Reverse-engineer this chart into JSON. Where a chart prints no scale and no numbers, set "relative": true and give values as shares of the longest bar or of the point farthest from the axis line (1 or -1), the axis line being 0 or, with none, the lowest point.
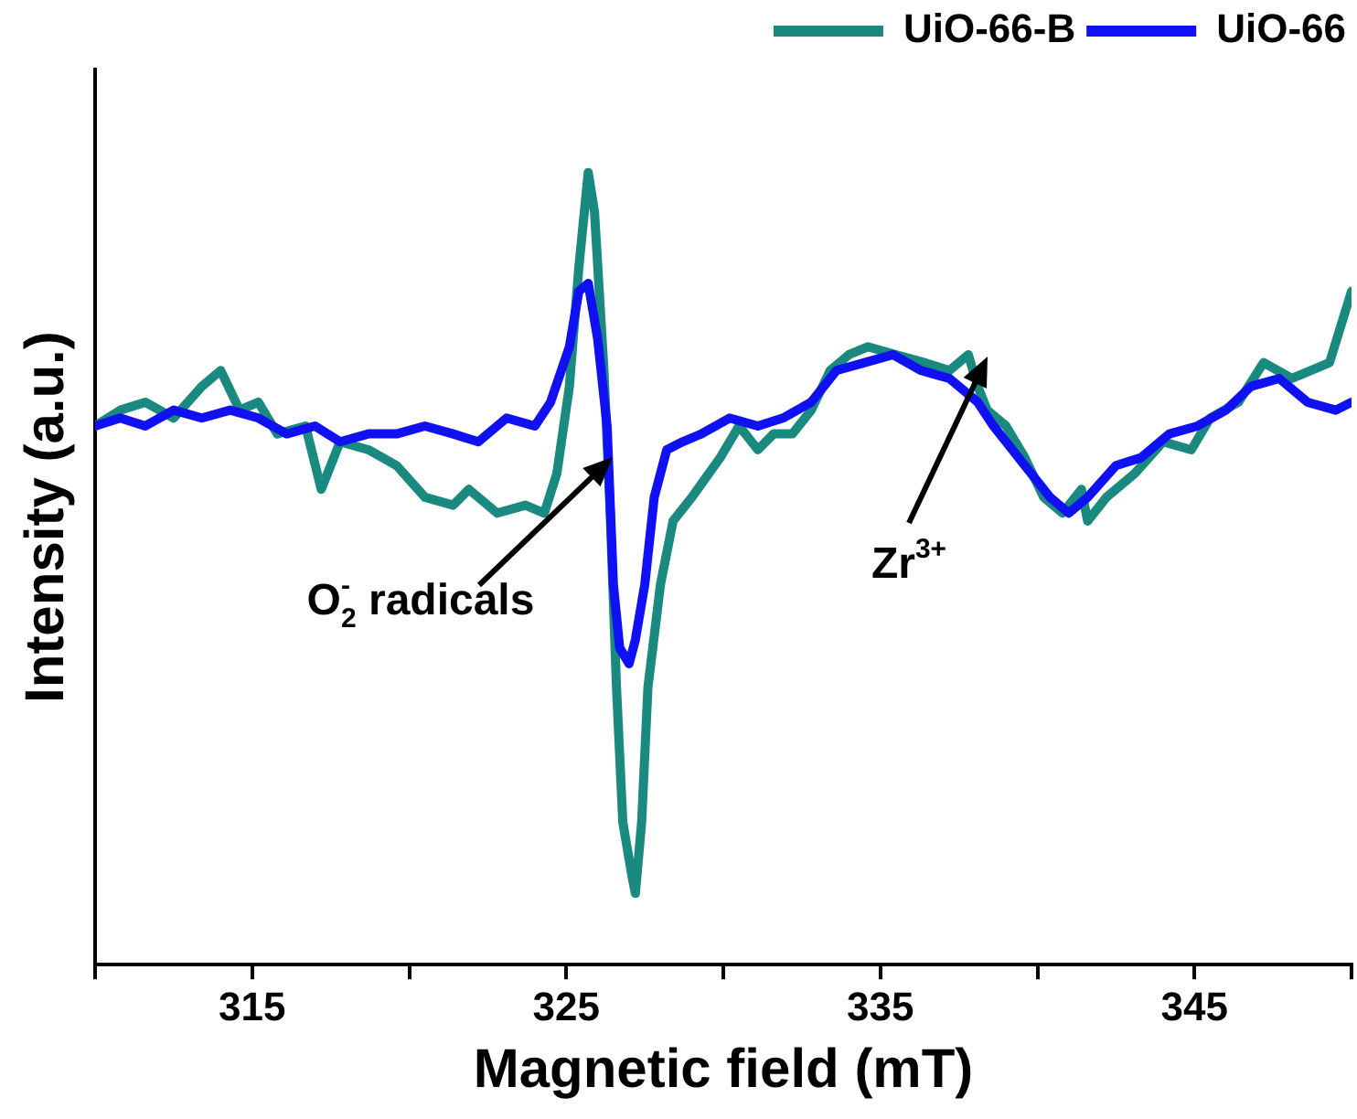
{
  "chart_data": {
    "type": "line",
    "xlabel": "Magnetic field (mT)",
    "ylabel": "Intensity (a.u.)",
    "relative": true,
    "xlim": [
      310,
      350
    ],
    "xticks": [
      {
        "value": 310,
        "label": null
      },
      315,
      {
        "value": 320,
        "label": null
      },
      325,
      {
        "value": 330,
        "label": null
      },
      335,
      {
        "value": 340,
        "label": null
      },
      345,
      {
        "value": 350,
        "label": null
      }
    ],
    "grid": false,
    "legend": "top right",
    "marker": "none",
    "line_style": "solid",
    "annotations": [
      "O$_{2}$$^{-}$ radicals",
      "Zr$^{3+}$"
    ],
    "series": [
      {
        "name": "UiO-66-B",
        "color": "#1a8a80",
        "x": [
          310.0,
          310.8,
          311.6,
          312.5,
          313.4,
          314.0,
          314.6,
          315.2,
          315.8,
          316.7,
          317.2,
          317.8,
          318.7,
          319.6,
          320.5,
          321.4,
          321.9,
          322.8,
          323.7,
          324.3,
          324.7,
          325.1,
          325.4,
          325.7,
          325.9,
          326.2,
          326.4,
          326.6,
          326.8,
          327.1,
          327.2,
          327.4,
          327.6,
          328.0,
          328.4,
          329.0,
          329.9,
          330.5,
          331.1,
          331.6,
          332.2,
          332.8,
          333.4,
          334.0,
          334.6,
          335.5,
          336.4,
          337.2,
          337.8,
          338.1,
          338.4,
          339.0,
          339.6,
          340.2,
          340.8,
          341.4,
          341.6,
          342.2,
          343.1,
          344.0,
          344.9,
          345.5,
          346.4,
          347.2,
          348.1,
          348.7,
          349.3,
          350.0
        ],
        "values": [
          0.68,
          0.7,
          0.71,
          0.69,
          0.73,
          0.75,
          0.7,
          0.71,
          0.67,
          0.68,
          0.6,
          0.66,
          0.65,
          0.63,
          0.59,
          0.58,
          0.6,
          0.57,
          0.58,
          0.57,
          0.62,
          0.73,
          0.88,
          1.0,
          0.95,
          0.75,
          0.57,
          0.35,
          0.18,
          0.11,
          0.09,
          0.18,
          0.35,
          0.48,
          0.56,
          0.59,
          0.64,
          0.68,
          0.65,
          0.67,
          0.67,
          0.7,
          0.75,
          0.77,
          0.78,
          0.77,
          0.76,
          0.75,
          0.77,
          0.73,
          0.7,
          0.68,
          0.64,
          0.59,
          0.57,
          0.6,
          0.56,
          0.59,
          0.62,
          0.66,
          0.65,
          0.69,
          0.71,
          0.76,
          0.74,
          0.75,
          0.76,
          0.85
        ]
      },
      {
        "name": "UiO-66",
        "color": "#1010f5",
        "x": [
          310.0,
          310.8,
          311.6,
          312.5,
          313.4,
          314.3,
          315.2,
          316.1,
          317.0,
          317.8,
          318.7,
          319.6,
          320.5,
          321.4,
          322.2,
          323.1,
          324.0,
          324.5,
          325.1,
          325.4,
          325.7,
          326.0,
          326.3,
          326.5,
          326.7,
          327.0,
          327.2,
          327.5,
          327.8,
          328.2,
          328.7,
          329.3,
          330.2,
          331.1,
          331.9,
          332.8,
          333.6,
          334.5,
          335.4,
          336.3,
          337.2,
          338.1,
          338.6,
          339.2,
          339.8,
          340.4,
          341.0,
          341.6,
          342.5,
          343.3,
          344.2,
          345.1,
          346.0,
          346.8,
          347.7,
          348.6,
          349.5,
          350.0
        ],
        "values": [
          0.68,
          0.69,
          0.68,
          0.7,
          0.69,
          0.7,
          0.69,
          0.67,
          0.68,
          0.66,
          0.67,
          0.67,
          0.68,
          0.67,
          0.66,
          0.69,
          0.68,
          0.71,
          0.78,
          0.85,
          0.86,
          0.79,
          0.68,
          0.48,
          0.4,
          0.38,
          0.41,
          0.48,
          0.59,
          0.65,
          0.66,
          0.67,
          0.69,
          0.68,
          0.69,
          0.71,
          0.75,
          0.76,
          0.77,
          0.75,
          0.74,
          0.71,
          0.68,
          0.65,
          0.62,
          0.59,
          0.57,
          0.59,
          0.63,
          0.64,
          0.67,
          0.68,
          0.7,
          0.73,
          0.74,
          0.71,
          0.7,
          0.71
        ]
      }
    ]
  }
}
